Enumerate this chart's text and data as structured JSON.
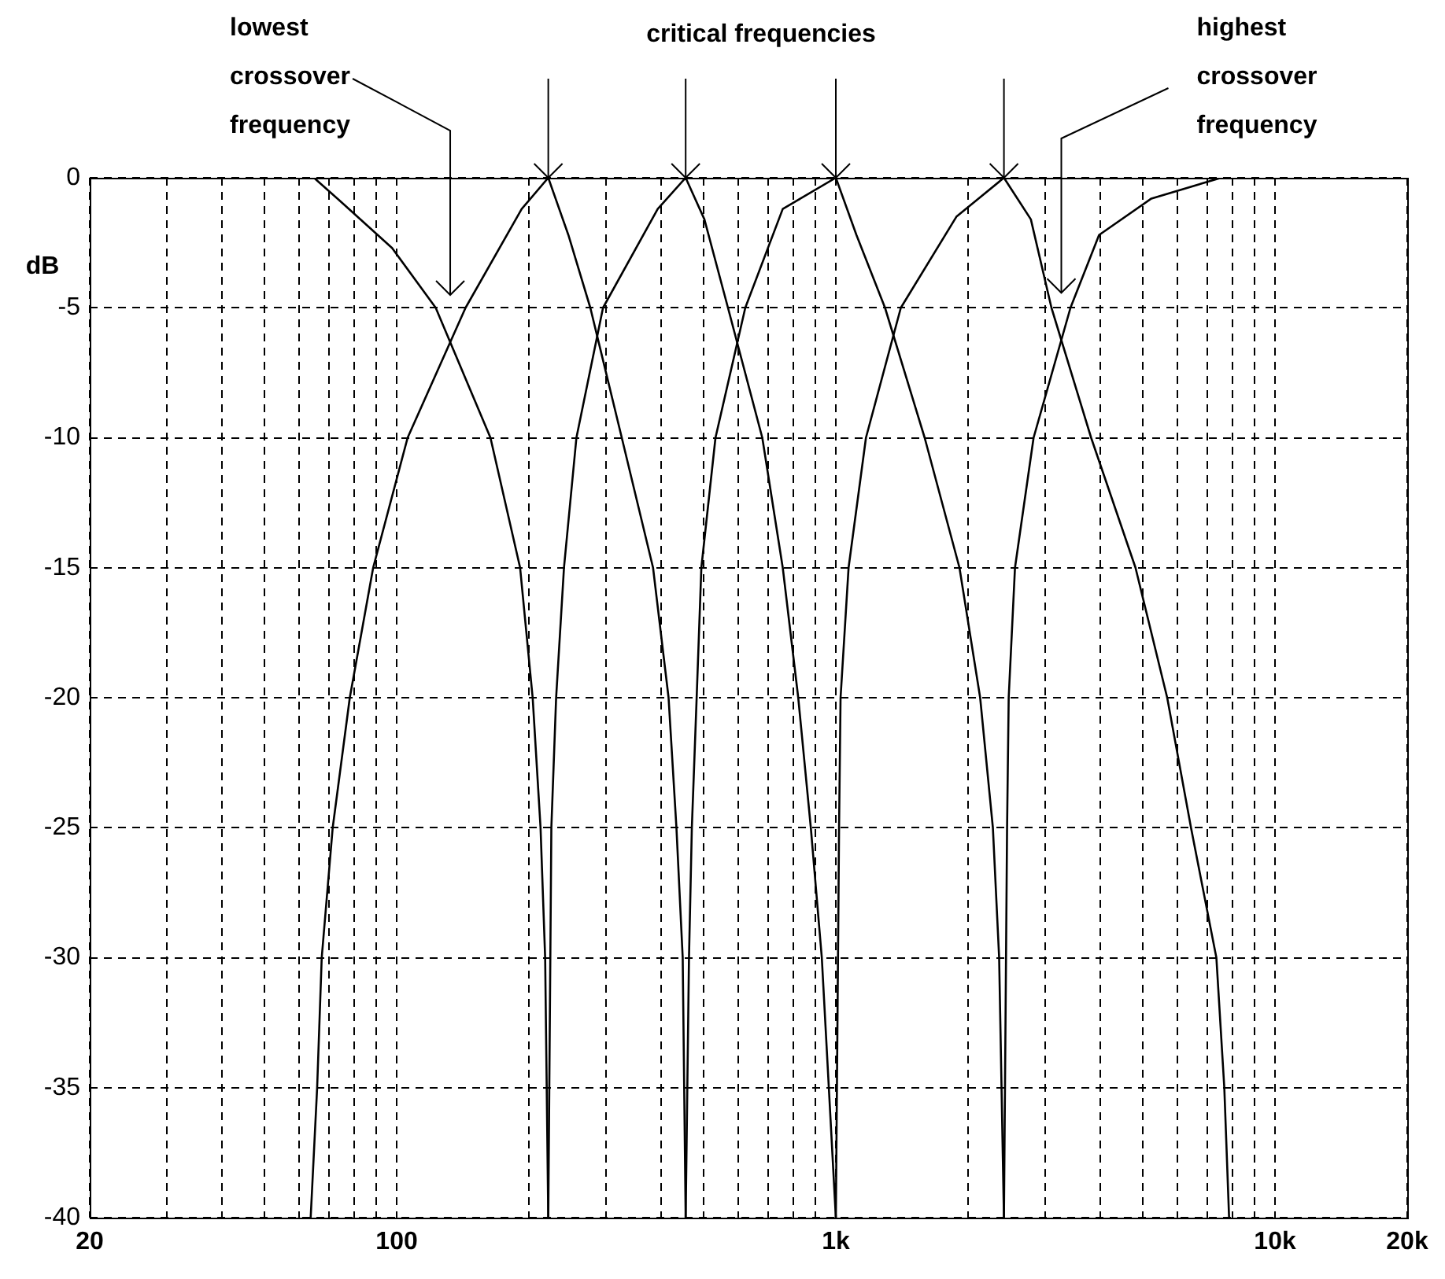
{
  "chart_data": {
    "type": "line",
    "ylabel": "dB",
    "log": "x",
    "grid": true,
    "marker": "none",
    "xlim": [
      20,
      20000
    ],
    "ylim": [
      -40,
      0
    ],
    "xticks": [
      20,
      {
        "value": 30,
        "label": null
      },
      {
        "value": 40,
        "label": null
      },
      {
        "value": 50,
        "label": null
      },
      {
        "value": 60,
        "label": null
      },
      {
        "value": 70,
        "label": null
      },
      {
        "value": 80,
        "label": null
      },
      {
        "value": 90,
        "label": null
      },
      100,
      {
        "value": 200,
        "label": null
      },
      {
        "value": 300,
        "label": null
      },
      {
        "value": 400,
        "label": null
      },
      {
        "value": 500,
        "label": null
      },
      {
        "value": 600,
        "label": null
      },
      {
        "value": 700,
        "label": null
      },
      {
        "value": 800,
        "label": null
      },
      {
        "value": 900,
        "label": null
      },
      {
        "value": 1000,
        "label": "1k"
      },
      {
        "value": 2000,
        "label": null
      },
      {
        "value": 3000,
        "label": null
      },
      {
        "value": 4000,
        "label": null
      },
      {
        "value": 5000,
        "label": null
      },
      {
        "value": 6000,
        "label": null
      },
      {
        "value": 7000,
        "label": null
      },
      {
        "value": 8000,
        "label": null
      },
      {
        "value": 9000,
        "label": null
      },
      {
        "value": 10000,
        "label": "10k"
      },
      {
        "value": 20000,
        "label": "20k"
      }
    ],
    "yticks": [
      0,
      -5,
      -10,
      -15,
      -20,
      -25,
      -30,
      -35,
      -40
    ],
    "series": [
      {
        "color": "#000000",
        "x": [
          64.8,
          74.4,
          97.6,
          122.7,
          163.5,
          191,
          204,
          212.6,
          217.8,
          221.4
        ],
        "values": [
          0,
          -0.9,
          -2.7,
          -5,
          -10,
          -15,
          -20,
          -25,
          -30,
          -40
        ]
      },
      {
        "color": "#000000",
        "x": [
          63.7,
          65.9,
          67.5,
          71.5,
          78.2,
          88.4,
          105.9,
          143.5,
          192.6,
          221.4,
          246,
          276,
          325.5,
          383.5,
          416,
          433.5,
          448,
          455
        ],
        "values": [
          -40,
          -35,
          -30,
          -25,
          -20,
          -15,
          -10,
          -5,
          -1.2,
          0,
          -2.2,
          -5,
          -10,
          -15,
          -20,
          -25,
          -30,
          -40
        ]
      },
      {
        "color": "#000000",
        "x": [
          221.4,
          225,
          230.7,
          240.4,
          256.6,
          295,
          393,
          455,
          502,
          568,
          680,
          757,
          821,
          877,
          929,
          1000
        ],
        "values": [
          -40,
          -25,
          -20,
          -15,
          -10,
          -5,
          -1.2,
          0,
          -1.6,
          -5,
          -10,
          -15,
          -20,
          -25,
          -30,
          -40
        ]
      },
      {
        "color": "#000000",
        "x": [
          455,
          463,
          470,
          482,
          494,
          532,
          622,
          757,
          1000,
          1114,
          1294,
          1593,
          1912,
          2131,
          2278,
          2354,
          2414
        ],
        "values": [
          -40,
          -30,
          -25,
          -20,
          -15,
          -10,
          -5,
          -1.2,
          0,
          -2.2,
          -5,
          -10,
          -15,
          -20,
          -25,
          -30,
          -40
        ]
      },
      {
        "color": "#000000",
        "x": [
          1000,
          1017,
          1025,
          1069,
          1171,
          1406,
          1881,
          2414,
          2780,
          3097,
          3813,
          4812,
          5682,
          6437,
          7353,
          7665,
          7860
        ],
        "values": [
          -40,
          -25,
          -20,
          -15,
          -10,
          -5,
          -1.5,
          0,
          -1.6,
          -5,
          -10,
          -15,
          -20,
          -25,
          -30,
          -35,
          -40
        ]
      },
      {
        "color": "#000000",
        "x": [
          2414,
          2454,
          2475,
          2558,
          2820,
          3422,
          3975,
          5229,
          7540
        ],
        "values": [
          -40,
          -25,
          -20,
          -15,
          -10,
          -5,
          -2.2,
          -0.8,
          0
        ]
      }
    ],
    "annotations": [
      "lowest crossover frequency",
      "critical frequencies",
      "highest crossover frequency"
    ]
  }
}
